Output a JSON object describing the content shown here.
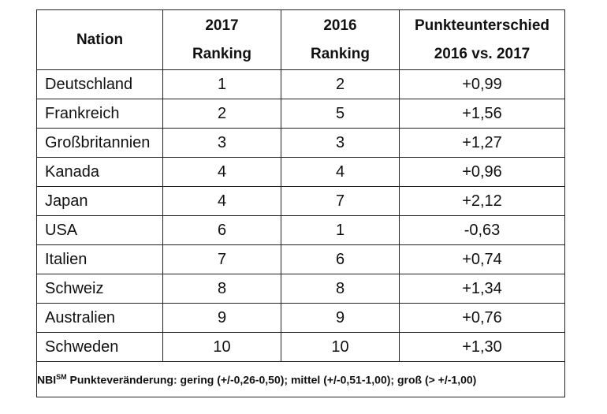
{
  "table": {
    "headers": {
      "nation": "Nation",
      "rank2017_line1": "2017",
      "rank2017_line2": "Ranking",
      "rank2016_line1": "2016",
      "rank2016_line2": "Ranking",
      "diff_line1": "Punkteunterschied",
      "diff_line2": "2016 vs. 2017"
    },
    "rows": [
      {
        "nation": "Deutschland",
        "rank2017": "1",
        "rank2016": "2",
        "diff": "+0,99"
      },
      {
        "nation": "Frankreich",
        "rank2017": "2",
        "rank2016": "5",
        "diff": "+1,56"
      },
      {
        "nation": "Großbritannien",
        "rank2017": "3",
        "rank2016": "3",
        "diff": "+1,27"
      },
      {
        "nation": "Kanada",
        "rank2017": "4",
        "rank2016": "4",
        "diff": "+0,96"
      },
      {
        "nation": "Japan",
        "rank2017": "4",
        "rank2016": "7",
        "diff": "+2,12"
      },
      {
        "nation": "USA",
        "rank2017": "6",
        "rank2016": "1",
        "diff": "-0,63"
      },
      {
        "nation": "Italien",
        "rank2017": "7",
        "rank2016": "6",
        "diff": "+0,74"
      },
      {
        "nation": "Schweiz",
        "rank2017": "8",
        "rank2016": "8",
        "diff": "+1,34"
      },
      {
        "nation": "Australien",
        "rank2017": "9",
        "rank2016": "9",
        "diff": "+0,76"
      },
      {
        "nation": "Schweden",
        "rank2017": "10",
        "rank2016": "10",
        "diff": "+1,30"
      }
    ],
    "footnote": {
      "prefix": "NBI",
      "superscript": "SM",
      "text": " Punkteveränderung: gering (+/-0,26-0,50); mittel (+/-0,51-1,00); groß (> +/-1,00)"
    }
  }
}
